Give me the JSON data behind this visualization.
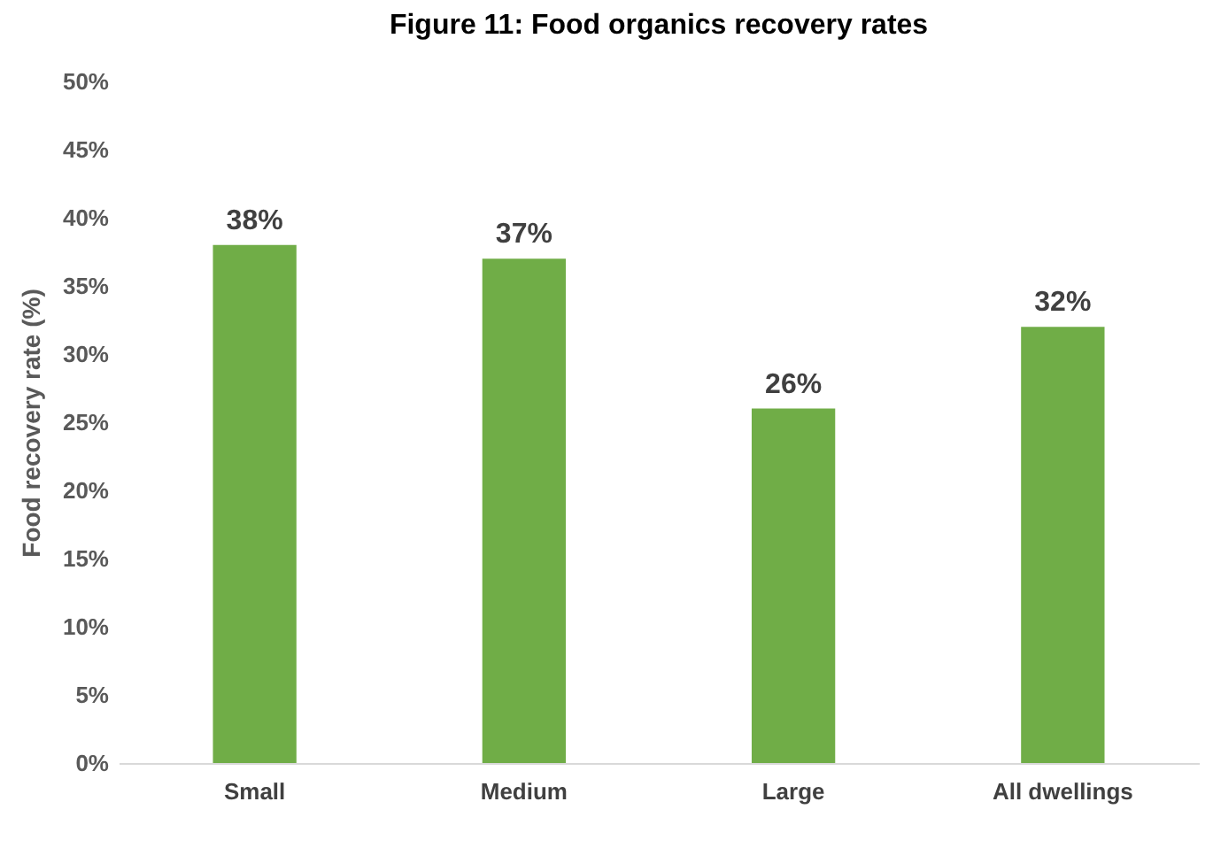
{
  "chart_data": {
    "type": "bar",
    "title": "Figure 11:  Food organics recovery rates",
    "ylabel": "Food recovery rate (%)",
    "categories": [
      "Small",
      "Medium",
      "Large",
      "All dwellings"
    ],
    "values": [
      38,
      37,
      26,
      32
    ],
    "value_labels": [
      "38%",
      "37%",
      "26%",
      "32%"
    ],
    "color": "#70ad47",
    "ylim": [
      0,
      50
    ],
    "yticks": [
      {
        "value": 0,
        "label": "0%"
      },
      {
        "value": 5,
        "label": "5%"
      },
      {
        "value": 10,
        "label": "10%"
      },
      {
        "value": 15,
        "label": "15%"
      },
      {
        "value": 20,
        "label": "20%"
      },
      {
        "value": 25,
        "label": "25%"
      },
      {
        "value": 30,
        "label": "30%"
      },
      {
        "value": 35,
        "label": "35%"
      },
      {
        "value": 40,
        "label": "40%"
      },
      {
        "value": 45,
        "label": "45%"
      },
      {
        "value": 50,
        "label": "50%"
      }
    ],
    "grid": false
  }
}
